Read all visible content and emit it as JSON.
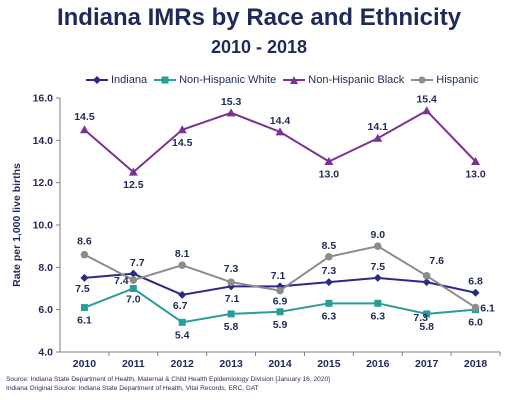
{
  "chart_data": {
    "type": "line",
    "title": "Indiana IMRs by Race and Ethnicity",
    "subtitle": "2010 - 2018",
    "xlabel": "",
    "ylabel": "Rate per 1,000 live births",
    "x": [
      "2010",
      "2011",
      "2012",
      "2013",
      "2014",
      "2015",
      "2016",
      "2017",
      "2018"
    ],
    "ylim": [
      4.0,
      16.0
    ],
    "yticks": [
      "4.0",
      "6.0",
      "8.0",
      "10.0",
      "12.0",
      "14.0",
      "16.0"
    ],
    "grid": false,
    "legend": "top",
    "series": [
      {
        "name": "Indiana",
        "color": "#2b2a8c",
        "marker": "diamond",
        "values": [
          7.5,
          7.7,
          6.7,
          7.1,
          7.1,
          7.3,
          7.5,
          7.3,
          6.8
        ],
        "labels": [
          "7.5",
          "",
          "6.7",
          "",
          "",
          "7.3",
          "7.5",
          "",
          "6.8"
        ]
      },
      {
        "name": "Non-Hispanic White",
        "color": "#2a9d9b",
        "marker": "square",
        "values": [
          6.1,
          7.0,
          5.4,
          5.8,
          5.9,
          6.3,
          6.3,
          5.8,
          6.0
        ],
        "labels": [
          "6.1",
          "7.0",
          "5.4",
          "5.8",
          "5.9",
          "6.3",
          "6.3",
          "5.8",
          "6.0"
        ]
      },
      {
        "name": "Non-Hispanic Black",
        "color": "#7b3294",
        "marker": "triangle",
        "values": [
          14.5,
          12.5,
          14.5,
          15.3,
          14.4,
          13.0,
          14.1,
          15.4,
          13.0
        ],
        "labels": [
          "14.5",
          "12.5",
          "14.5",
          "15.3",
          "14.4",
          "13.0",
          "14.1",
          "15.4",
          "13.0"
        ]
      },
      {
        "name": "Hispanic",
        "color": "#8c8c8c",
        "marker": "circle",
        "values": [
          8.6,
          7.4,
          8.1,
          7.3,
          6.9,
          8.5,
          9.0,
          7.6,
          6.1
        ],
        "labels": [
          "8.6",
          "7.4",
          "8.1",
          "7.3",
          "6.9",
          "8.5",
          "9.0",
          "7.6",
          "6.1"
        ]
      }
    ],
    "extra_labels": [
      "7.7",
      "7.1",
      "7.1",
      "7.3"
    ]
  },
  "source_lines": [
    "Source: Indiana State Department of Health, Maternal & Child Health Epidemiology Division [January 16, 2020]",
    "Indiana Original Source: Indiana State Department of Health, Vital Records, ERC, DAT"
  ]
}
